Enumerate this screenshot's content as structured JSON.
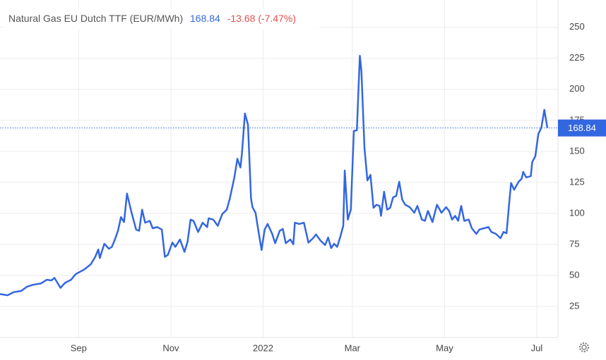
{
  "chart_data": {
    "type": "line",
    "title": "Natural Gas EU Dutch TTF (EUR/MWh)",
    "price": 168.84,
    "change": "-13.68 (-7.47%)",
    "color": "#3367e0",
    "grid": true,
    "xlim": [
      10,
      379
    ],
    "xticks": [
      {
        "value": 62,
        "label": "Sep"
      },
      {
        "value": 123,
        "label": "Nov"
      },
      {
        "value": 184,
        "label": "2022"
      },
      {
        "value": 243,
        "label": "Mar"
      },
      {
        "value": 304,
        "label": "May"
      },
      {
        "value": 365,
        "label": "Jul"
      }
    ],
    "ylim": [
      0,
      272
    ],
    "yticks": [
      25,
      50,
      75,
      100,
      125,
      150,
      175,
      200,
      225,
      250
    ],
    "x": [
      10,
      15,
      19,
      24,
      28,
      32,
      37,
      41,
      44,
      46,
      48,
      50,
      53,
      57,
      60,
      63,
      66,
      70,
      73,
      75,
      76,
      79,
      82,
      84,
      86,
      88,
      90,
      92,
      94,
      97,
      100,
      102,
      104,
      106,
      109,
      111,
      114,
      117,
      119,
      121,
      124,
      126,
      129,
      132,
      134,
      136,
      138,
      141,
      144,
      147,
      148,
      151,
      154,
      157,
      160,
      162,
      165,
      167,
      169,
      170,
      172,
      174,
      176,
      177,
      179,
      181,
      183,
      185,
      187,
      190,
      192,
      195,
      197,
      199,
      202,
      204,
      205,
      208,
      211,
      214,
      217,
      219,
      222,
      225,
      227,
      229,
      231,
      233,
      235,
      237,
      238,
      240,
      242,
      244,
      246,
      247,
      248,
      249,
      251,
      253,
      255,
      257,
      259,
      261,
      262,
      264,
      266,
      268,
      270,
      272,
      274,
      276,
      278,
      281,
      284,
      286,
      289,
      291,
      293,
      296,
      299,
      302,
      305,
      307,
      309,
      311,
      313,
      315,
      317,
      320,
      322,
      325,
      327,
      330,
      333,
      335,
      338,
      341,
      343,
      345,
      347,
      348,
      350,
      353,
      355,
      356,
      358,
      361,
      362,
      364,
      366,
      368,
      370,
      372
    ],
    "values": [
      35,
      34,
      36.5,
      37.5,
      41,
      42.5,
      43.5,
      46.5,
      46,
      48,
      44,
      40,
      44,
      46.5,
      51,
      53,
      55,
      59,
      65,
      71,
      64,
      75.5,
      71.5,
      73,
      79,
      86,
      97,
      93,
      116,
      100.5,
      87,
      86,
      103,
      92.5,
      94,
      88,
      89,
      87,
      65,
      66.5,
      76.5,
      73,
      79,
      69,
      77,
      95,
      94,
      85,
      92.5,
      89,
      96,
      95,
      90,
      99.5,
      103,
      112,
      129,
      144,
      137,
      148,
      180.5,
      171.5,
      112,
      105,
      100.5,
      85,
      70.5,
      87,
      91.5,
      83.5,
      76,
      86,
      87.5,
      76,
      79,
      75,
      92.5,
      91.5,
      92.5,
      76.5,
      80,
      83,
      78,
      74.5,
      80.5,
      72,
      75.5,
      73,
      81,
      90,
      134.5,
      95,
      103,
      166.5,
      167,
      198,
      227,
      215,
      153,
      126.5,
      131,
      104.5,
      107,
      106,
      98,
      117.5,
      103,
      104.5,
      113,
      114,
      125.5,
      111,
      107,
      105,
      100.5,
      106,
      95,
      94,
      102,
      93,
      107,
      100.5,
      105,
      102,
      95,
      98,
      94,
      106,
      94,
      95,
      88,
      83.5,
      87,
      88,
      89,
      85,
      83.5,
      80,
      85,
      84,
      112,
      124.5,
      119,
      125.5,
      128,
      133.5,
      129,
      130,
      141.5,
      146,
      164,
      169,
      183.5,
      168.84
    ]
  }
}
